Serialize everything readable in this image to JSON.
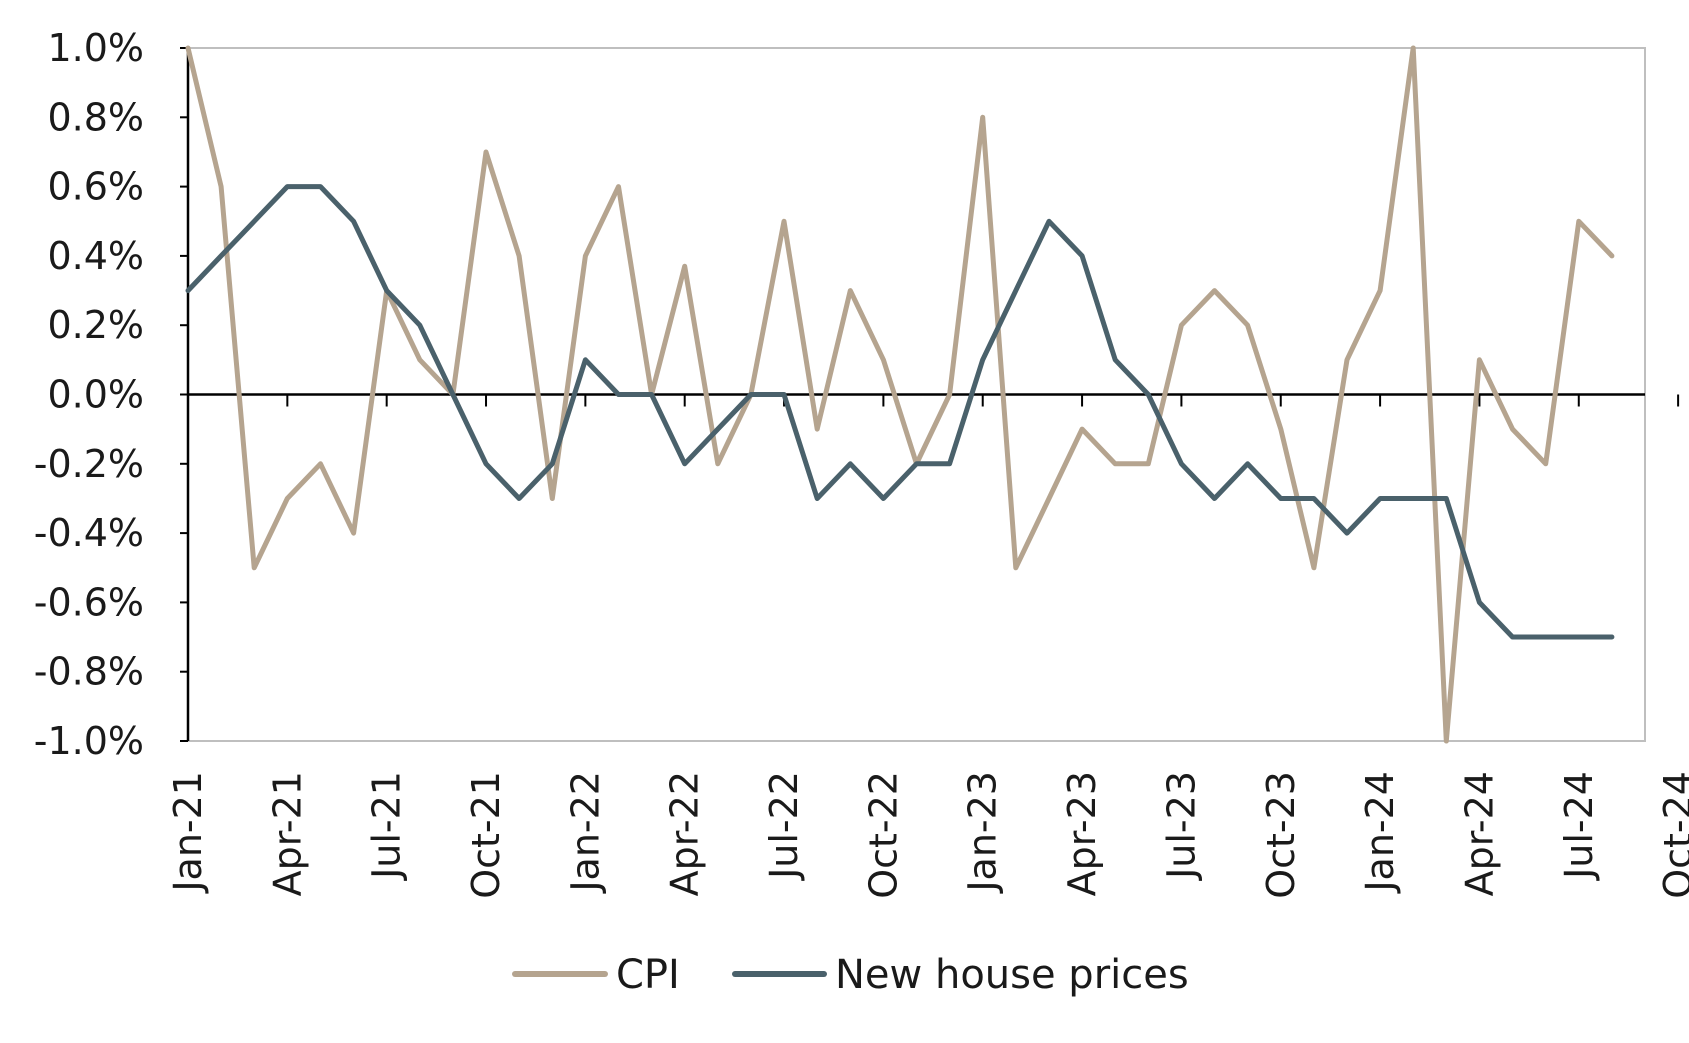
{
  "chart_data": {
    "type": "line",
    "title": "",
    "xlabel": "",
    "ylabel": "",
    "x_start": "Jan-21",
    "x_end": "Oct-24",
    "x_tick_labels": [
      "Jan-21",
      "Apr-21",
      "Jul-21",
      "Oct-21",
      "Jan-22",
      "Apr-22",
      "Jul-22",
      "Oct-22",
      "Jan-23",
      "Apr-23",
      "Jul-23",
      "Oct-23",
      "Jan-24",
      "Apr-24",
      "Jul-24",
      "Oct-24"
    ],
    "y_tick_labels": [
      "1.0%",
      "0.8%",
      "0.6%",
      "0.4%",
      "0.2%",
      "0.0%",
      "-0.2%",
      "-0.4%",
      "-0.6%",
      "-0.8%",
      "-1.0%"
    ],
    "y_ticks": [
      1.0,
      0.8,
      0.6,
      0.4,
      0.2,
      0.0,
      -0.2,
      -0.4,
      -0.6,
      -0.8,
      -1.0
    ],
    "ylim": [
      -1.0,
      1.0
    ],
    "y_unit": "%",
    "grid": false,
    "legend_position": "bottom",
    "x": [
      "Jan-21",
      "Feb-21",
      "Mar-21",
      "Apr-21",
      "May-21",
      "Jun-21",
      "Jul-21",
      "Aug-21",
      "Sep-21",
      "Oct-21",
      "Nov-21",
      "Dec-21",
      "Jan-22",
      "Feb-22",
      "Mar-22",
      "Apr-22",
      "May-22",
      "Jun-22",
      "Jul-22",
      "Aug-22",
      "Sep-22",
      "Oct-22",
      "Nov-22",
      "Dec-22",
      "Jan-23",
      "Feb-23",
      "Mar-23",
      "Apr-23",
      "May-23",
      "Jun-23",
      "Jul-23",
      "Aug-23",
      "Sep-23",
      "Oct-23",
      "Nov-23",
      "Dec-23",
      "Jan-24",
      "Feb-24",
      "Mar-24",
      "Apr-24",
      "May-24",
      "Jun-24",
      "Jul-24",
      "Aug-24"
    ],
    "series": [
      {
        "name": "CPI",
        "color": "#b5a48f",
        "values": [
          1.0,
          0.6,
          -0.5,
          -0.3,
          -0.2,
          -0.4,
          0.3,
          0.1,
          0.0,
          0.7,
          0.4,
          -0.3,
          0.4,
          0.6,
          0.0,
          0.37,
          -0.2,
          0.0,
          0.5,
          -0.1,
          0.3,
          0.1,
          -0.2,
          0.0,
          0.8,
          -0.5,
          -0.3,
          -0.1,
          -0.2,
          -0.2,
          0.2,
          0.3,
          0.2,
          -0.1,
          -0.5,
          0.1,
          0.3,
          1.0,
          -1.0,
          0.1,
          -0.1,
          -0.2,
          0.5,
          0.4
        ]
      },
      {
        "name": "New house prices",
        "color": "#4a616b",
        "values": [
          0.3,
          0.4,
          0.5,
          0.6,
          0.6,
          0.5,
          0.3,
          0.2,
          0.0,
          -0.2,
          -0.3,
          -0.2,
          0.1,
          0.0,
          0.0,
          -0.2,
          -0.1,
          0.0,
          0.0,
          -0.3,
          -0.2,
          -0.3,
          -0.2,
          -0.2,
          0.1,
          0.3,
          0.5,
          0.4,
          0.1,
          0.0,
          -0.2,
          -0.3,
          -0.2,
          -0.3,
          -0.3,
          -0.4,
          -0.3,
          -0.3,
          -0.3,
          -0.6,
          -0.7,
          -0.7,
          -0.7,
          -0.7
        ]
      }
    ],
    "colors": {
      "axis": "#000000",
      "frame": "#bfbfbf"
    }
  }
}
